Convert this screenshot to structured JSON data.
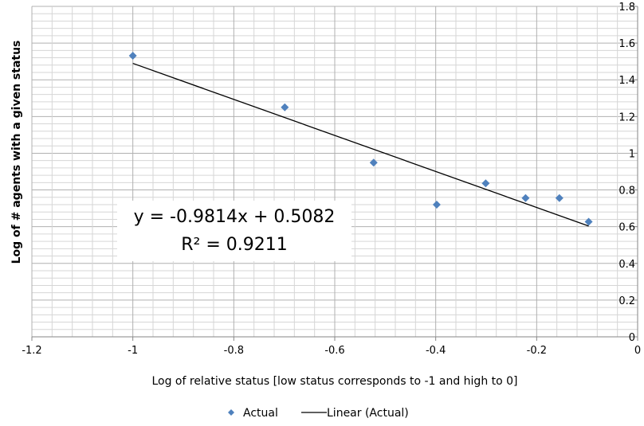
{
  "chart_data": {
    "type": "scatter",
    "xlabel": "Log of relative status [low status corresponds to -1 and high to 0]",
    "ylabel": "Log of # agents with a given status",
    "xlim": [
      -1.2,
      0
    ],
    "ylim": [
      0,
      1.8
    ],
    "x_ticks": [
      "-1.2",
      "-1",
      "-0.8",
      "-0.6",
      "-0.4",
      "-0.2",
      "0"
    ],
    "y_ticks": [
      "0",
      "0.2",
      "0.4",
      "0.6",
      "0.8",
      "1",
      "1.2",
      "1.4",
      "1.6",
      "1.8"
    ],
    "grid": true,
    "legend_position": "bottom",
    "series": [
      {
        "name": "Actual",
        "color": "#4F81BD",
        "marker": "diamond",
        "x": [
          -1.0,
          -0.699,
          -0.523,
          -0.398,
          -0.301,
          -0.222,
          -0.155,
          -0.097
        ],
        "y": [
          1.531,
          1.25,
          0.949,
          0.72,
          0.836,
          0.756,
          0.756,
          0.627
        ]
      },
      {
        "name": "Linear (Actual)",
        "type": "line",
        "color": "#000000",
        "slope": -0.9814,
        "intercept": 0.5082,
        "x_range": [
          -1.0,
          -0.097
        ]
      }
    ],
    "annotations": {
      "equation": "y = -0.9814x + 0.5082",
      "r2_label": "R² = 0.9211"
    }
  }
}
